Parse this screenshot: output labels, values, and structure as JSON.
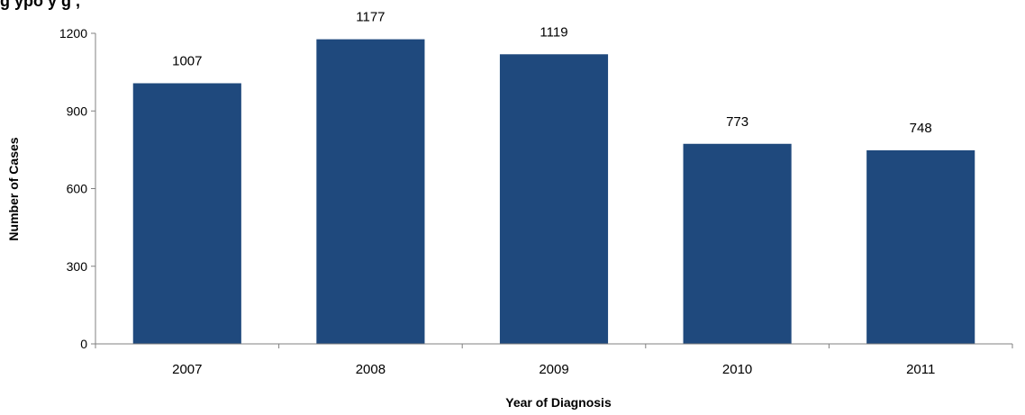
{
  "chart_data": {
    "type": "bar",
    "title": "g    ypo          y           g    ,",
    "categories": [
      "2007",
      "2008",
      "2009",
      "2010",
      "2011"
    ],
    "values": [
      1007,
      1177,
      1119,
      773,
      748
    ],
    "data_labels": [
      "1007",
      "1177",
      "1119",
      "773",
      "748"
    ],
    "xlabel": "Year of Diagnosis",
    "ylabel": "Number of Cases",
    "ylim": [
      0,
      1200
    ],
    "yticks": [
      0,
      300,
      600,
      900,
      1200
    ],
    "ytick_labels": [
      "0",
      "300",
      "600",
      "900",
      "1200"
    ],
    "grid": false,
    "legend": "none",
    "bar_color": "#1f497d"
  }
}
